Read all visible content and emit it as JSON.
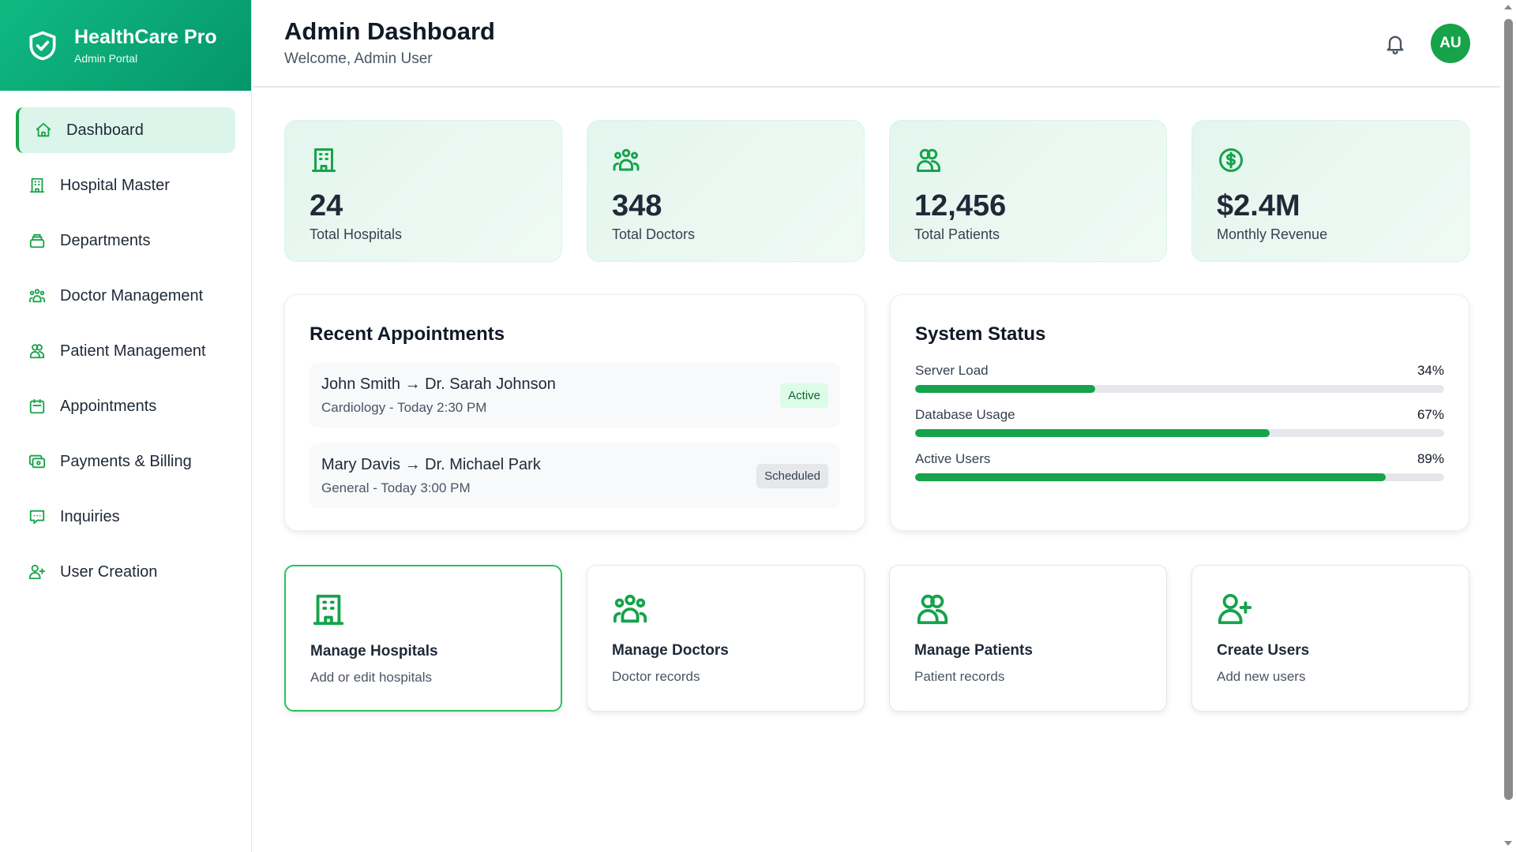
{
  "brand": {
    "title": "HealthCare Pro",
    "subtitle": "Admin Portal"
  },
  "sidebar": {
    "items": [
      {
        "label": "Dashboard",
        "icon": "home-icon",
        "active": true
      },
      {
        "label": "Hospital Master",
        "icon": "building-icon"
      },
      {
        "label": "Departments",
        "icon": "departments-icon"
      },
      {
        "label": "Doctor Management",
        "icon": "users-group-icon"
      },
      {
        "label": "Patient Management",
        "icon": "users-icon"
      },
      {
        "label": "Appointments",
        "icon": "calendar-icon"
      },
      {
        "label": "Payments & Billing",
        "icon": "cash-icon"
      },
      {
        "label": "Inquiries",
        "icon": "chat-icon"
      },
      {
        "label": "User Creation",
        "icon": "user-plus-icon"
      }
    ]
  },
  "header": {
    "title": "Admin Dashboard",
    "subtitle": "Welcome, Admin User",
    "avatar": "AU"
  },
  "stats": [
    {
      "value": "24",
      "label": "Total Hospitals",
      "icon": "building-icon"
    },
    {
      "value": "348",
      "label": "Total Doctors",
      "icon": "users-group-icon"
    },
    {
      "value": "12,456",
      "label": "Total Patients",
      "icon": "users-icon"
    },
    {
      "value": "$2.4M",
      "label": "Monthly Revenue",
      "icon": "dollar-icon"
    }
  ],
  "appointments": {
    "title": "Recent Appointments",
    "items": [
      {
        "name": "John Smith → Dr. Sarah Johnson",
        "detail": "Cardiology - Today 2:30 PM",
        "status": "Active"
      },
      {
        "name": "Mary Davis → Dr. Michael Park",
        "detail": "General - Today 3:00 PM",
        "status": "Scheduled"
      }
    ]
  },
  "system_status": {
    "title": "System Status",
    "items": [
      {
        "label": "Server Load",
        "value": "34%",
        "percent": 34
      },
      {
        "label": "Database Usage",
        "value": "67%",
        "percent": 67
      },
      {
        "label": "Active Users",
        "value": "89%",
        "percent": 89
      }
    ]
  },
  "actions": [
    {
      "title": "Manage Hospitals",
      "subtitle": "Add or edit hospitals"
    },
    {
      "title": "Manage Doctors",
      "subtitle": "Doctor records"
    },
    {
      "title": "Manage Patients",
      "subtitle": "Patient records"
    },
    {
      "title": "Create Users",
      "subtitle": "Add new users"
    }
  ],
  "colors": {
    "accent": "#16a34a",
    "brand_gradient_start": "#10b981",
    "brand_gradient_end": "#059669"
  }
}
